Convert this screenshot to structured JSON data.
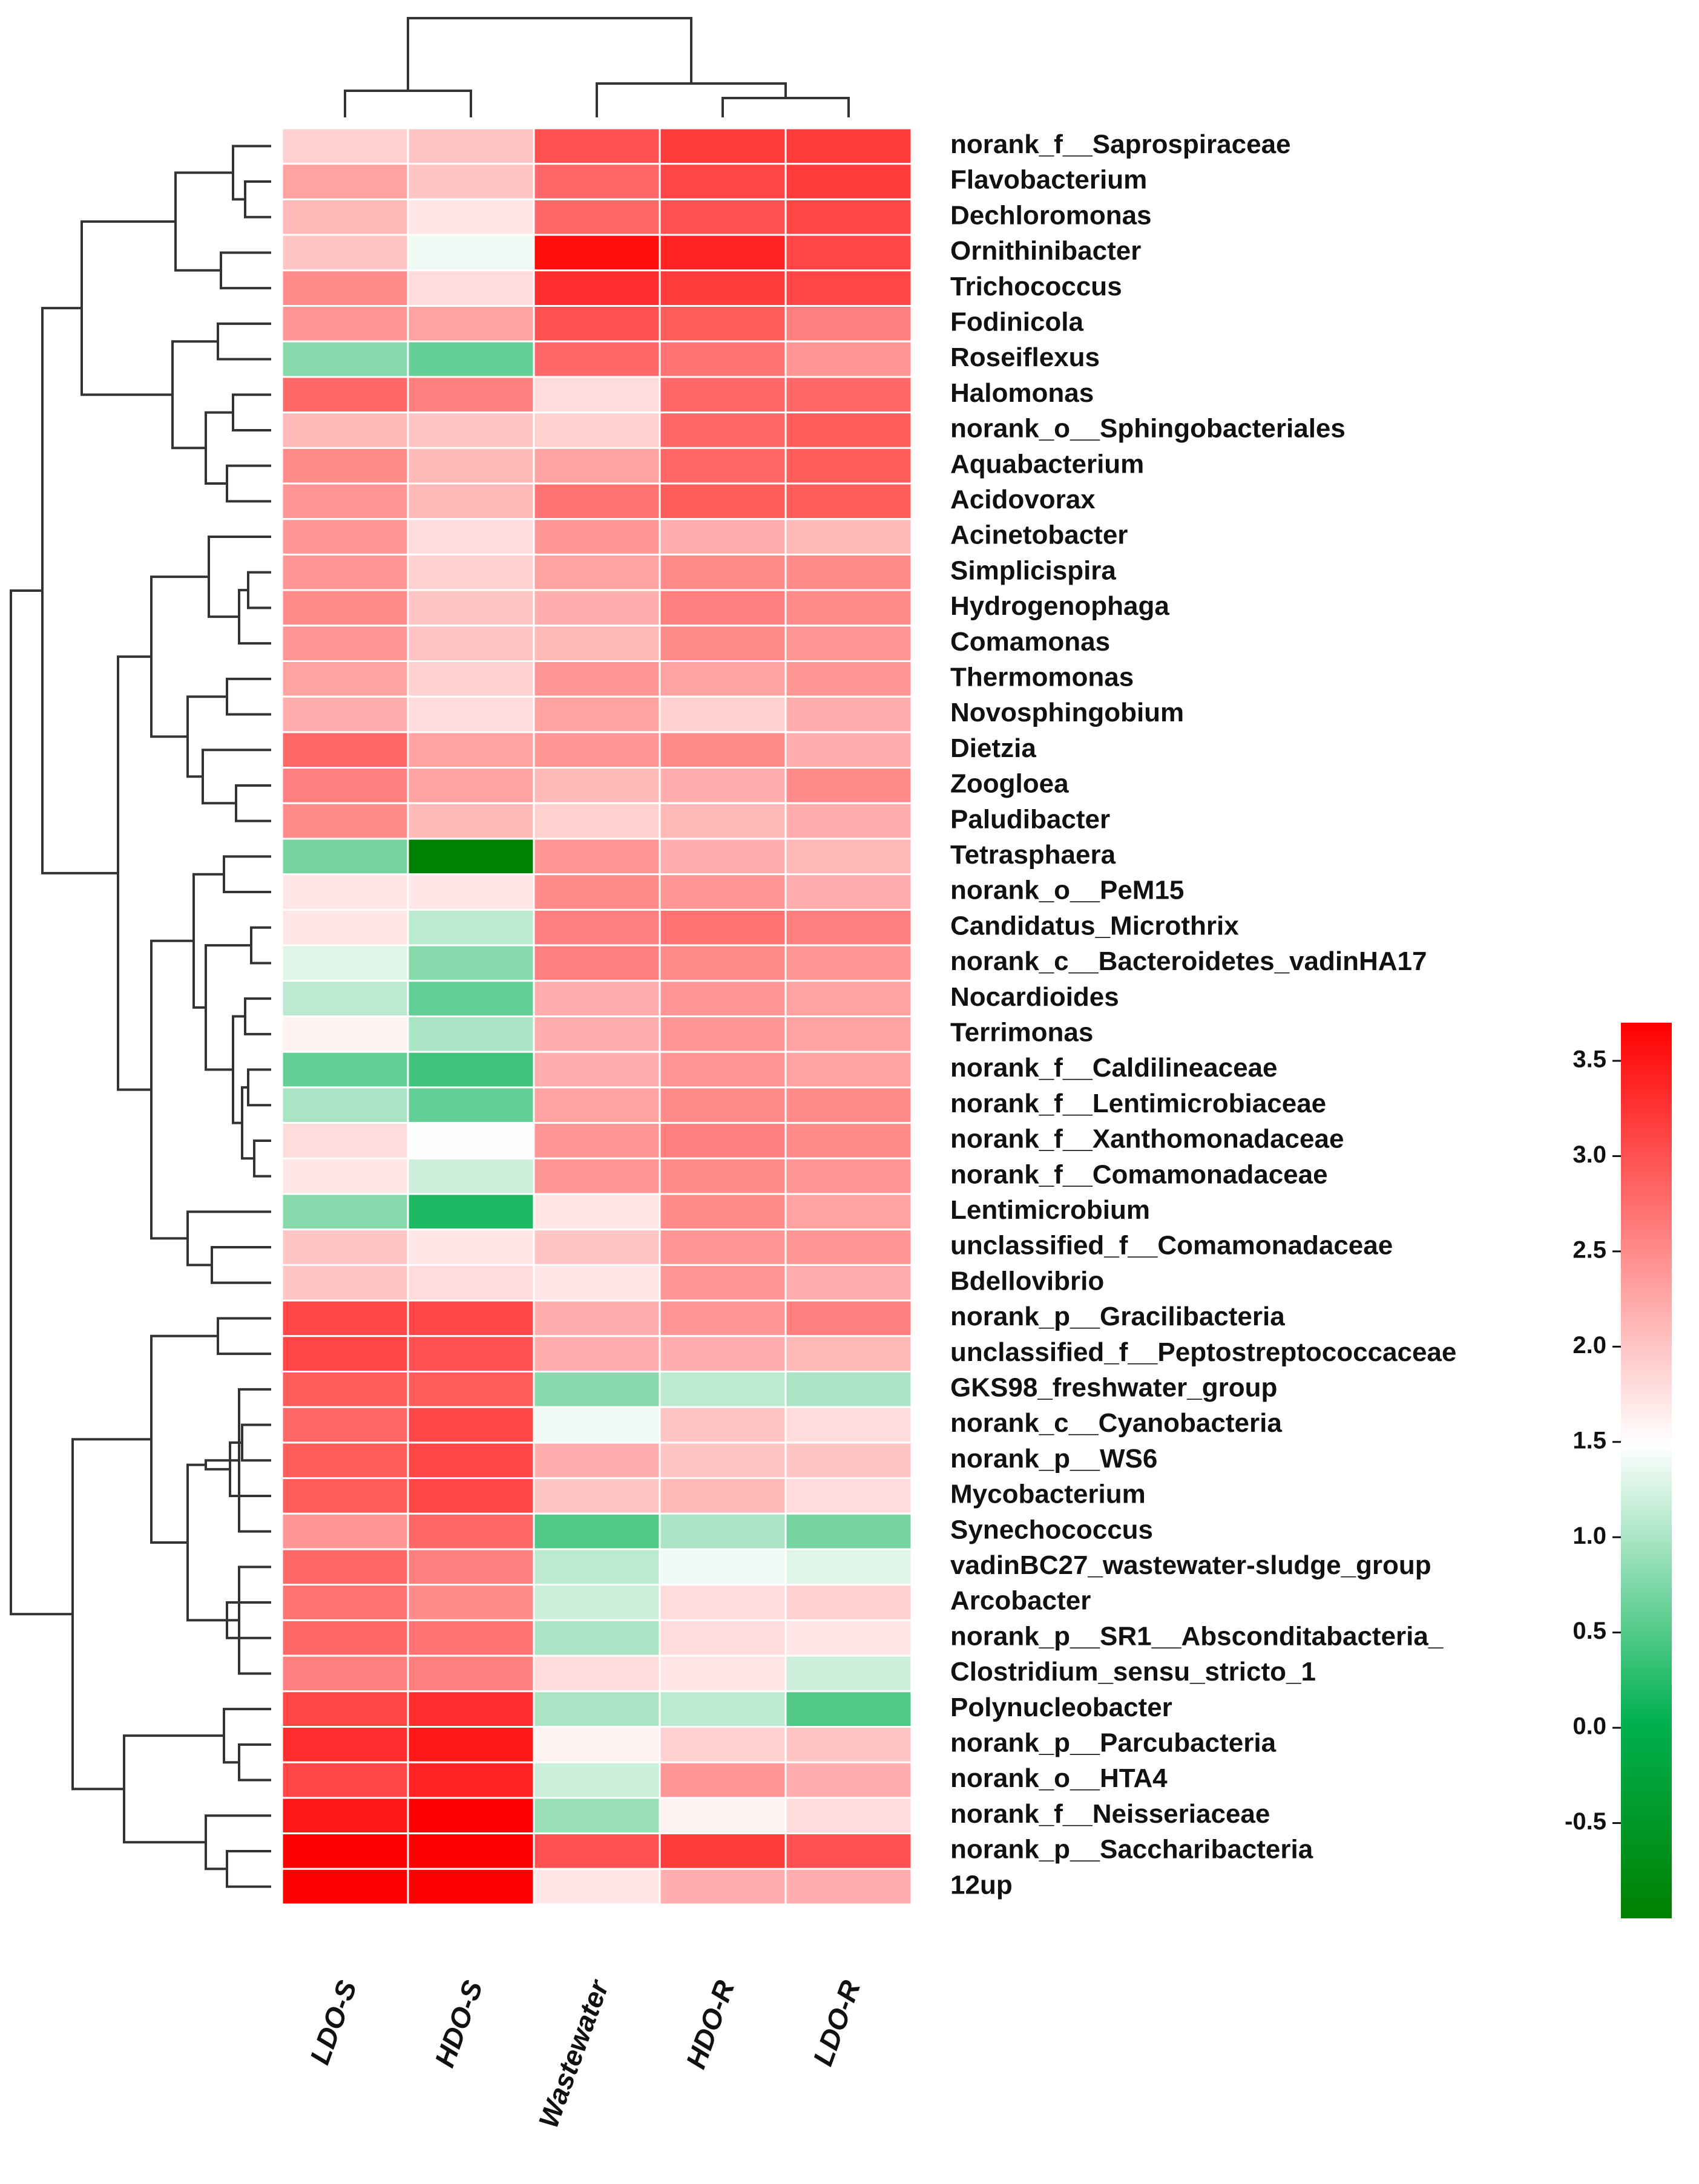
{
  "chart_data": {
    "type": "heatmap",
    "title": "",
    "columns": [
      "LDO-S",
      "HDO-S",
      "Wastewater",
      "HDO-R",
      "LDO-R"
    ],
    "rows": [
      {
        "label": "norank_f__Saprospiraceae",
        "values": [
          1.9,
          2.0,
          3.0,
          3.2,
          3.2
        ]
      },
      {
        "label": "Flavobacterium",
        "values": [
          2.3,
          2.0,
          2.8,
          3.1,
          3.2
        ]
      },
      {
        "label": "Dechloromonas",
        "values": [
          2.1,
          1.7,
          2.8,
          3.0,
          3.1
        ]
      },
      {
        "label": "Ornithinibacter",
        "values": [
          2.0,
          1.4,
          3.6,
          3.4,
          3.1
        ]
      },
      {
        "label": "Trichococcus",
        "values": [
          2.5,
          1.8,
          3.3,
          3.2,
          3.1
        ]
      },
      {
        "label": "Fodinicola",
        "values": [
          2.4,
          2.3,
          3.0,
          2.9,
          2.6
        ]
      },
      {
        "label": "Roseiflexus",
        "values": [
          0.8,
          0.6,
          2.8,
          2.7,
          2.4
        ]
      },
      {
        "label": "Halomonas",
        "values": [
          2.8,
          2.6,
          1.8,
          2.8,
          2.8
        ]
      },
      {
        "label": "norank_o__Sphingobacteriales",
        "values": [
          2.1,
          2.0,
          1.9,
          2.8,
          2.9
        ]
      },
      {
        "label": "Aquabacterium",
        "values": [
          2.5,
          2.1,
          2.3,
          2.8,
          2.9
        ]
      },
      {
        "label": "Acidovorax",
        "values": [
          2.4,
          2.1,
          2.7,
          2.9,
          2.9
        ]
      },
      {
        "label": "Acinetobacter",
        "values": [
          2.4,
          1.8,
          2.4,
          2.2,
          2.1
        ]
      },
      {
        "label": "Simplicispira",
        "values": [
          2.4,
          1.9,
          2.3,
          2.5,
          2.5
        ]
      },
      {
        "label": "Hydrogenophaga",
        "values": [
          2.5,
          2.0,
          2.2,
          2.6,
          2.5
        ]
      },
      {
        "label": "Comamonas",
        "values": [
          2.4,
          2.0,
          2.1,
          2.5,
          2.4
        ]
      },
      {
        "label": "Thermomonas",
        "values": [
          2.3,
          1.9,
          2.4,
          2.3,
          2.4
        ]
      },
      {
        "label": "Novosphingobium",
        "values": [
          2.2,
          1.8,
          2.3,
          1.9,
          2.2
        ]
      },
      {
        "label": "Dietzia",
        "values": [
          2.8,
          2.3,
          2.4,
          2.5,
          2.2
        ]
      },
      {
        "label": "Zoogloea",
        "values": [
          2.6,
          2.3,
          2.1,
          2.2,
          2.5
        ]
      },
      {
        "label": "Paludibacter",
        "values": [
          2.5,
          2.1,
          1.9,
          2.1,
          2.2
        ]
      },
      {
        "label": "Tetrasphaera",
        "values": [
          0.7,
          -1.0,
          2.4,
          2.2,
          2.1
        ]
      },
      {
        "label": "norank_o__PeM15",
        "values": [
          1.7,
          1.7,
          2.5,
          2.4,
          2.2
        ]
      },
      {
        "label": "Candidatus_Microthrix",
        "values": [
          1.7,
          1.1,
          2.6,
          2.7,
          2.6
        ]
      },
      {
        "label": "norank_c__Bacteroidetes_vadinHA17",
        "values": [
          1.3,
          0.8,
          2.6,
          2.5,
          2.4
        ]
      },
      {
        "label": "Nocardioides",
        "values": [
          1.1,
          0.6,
          2.2,
          2.4,
          2.3
        ]
      },
      {
        "label": "Terrimonas",
        "values": [
          1.6,
          1.0,
          2.2,
          2.4,
          2.3
        ]
      },
      {
        "label": "norank_f__Caldilineaceae",
        "values": [
          0.6,
          0.4,
          2.2,
          2.4,
          2.3
        ]
      },
      {
        "label": "norank_f__Lentimicrobiaceae",
        "values": [
          1.0,
          0.6,
          2.3,
          2.5,
          2.5
        ]
      },
      {
        "label": "norank_f__Xanthomonadaceae",
        "values": [
          1.8,
          1.5,
          2.4,
          2.6,
          2.5
        ]
      },
      {
        "label": "norank_f__Comamonadaceae",
        "values": [
          1.7,
          1.2,
          2.4,
          2.5,
          2.4
        ]
      },
      {
        "label": "Lentimicrobium",
        "values": [
          0.8,
          0.2,
          1.7,
          2.5,
          2.3
        ]
      },
      {
        "label": "unclassified_f__Comamonadaceae",
        "values": [
          2.0,
          1.7,
          2.0,
          2.4,
          2.4
        ]
      },
      {
        "label": "Bdellovibrio",
        "values": [
          2.0,
          1.8,
          1.7,
          2.4,
          2.2
        ]
      },
      {
        "label": "norank_p__Gracilibacteria",
        "values": [
          3.1,
          3.1,
          2.2,
          2.4,
          2.6
        ]
      },
      {
        "label": "unclassified_f__Peptostreptococcaceae",
        "values": [
          3.1,
          3.0,
          2.2,
          2.2,
          2.1
        ]
      },
      {
        "label": "GKS98_freshwater_group",
        "values": [
          2.9,
          2.9,
          0.8,
          1.1,
          1.0
        ]
      },
      {
        "label": "norank_c__Cyanobacteria",
        "values": [
          2.8,
          3.1,
          1.4,
          2.0,
          1.8
        ]
      },
      {
        "label": "norank_p__WS6",
        "values": [
          2.9,
          3.1,
          2.2,
          2.0,
          2.0
        ]
      },
      {
        "label": "Mycobacterium",
        "values": [
          2.9,
          3.1,
          2.0,
          2.1,
          1.8
        ]
      },
      {
        "label": "Synechococcus",
        "values": [
          2.4,
          2.8,
          0.5,
          1.0,
          0.7
        ]
      },
      {
        "label": "vadinBC27_wastewater-sludge_group",
        "values": [
          2.8,
          2.6,
          1.1,
          1.4,
          1.3
        ]
      },
      {
        "label": "Arcobacter",
        "values": [
          2.7,
          2.5,
          1.2,
          1.8,
          1.9
        ]
      },
      {
        "label": "norank_p__SR1__Absconditabacteria_",
        "values": [
          2.8,
          2.7,
          1.0,
          1.8,
          1.7
        ]
      },
      {
        "label": "Clostridium_sensu_stricto_1",
        "values": [
          2.6,
          2.6,
          1.8,
          1.7,
          1.2
        ]
      },
      {
        "label": "Polynucleobacter",
        "values": [
          3.1,
          3.3,
          1.0,
          1.1,
          0.5
        ]
      },
      {
        "label": "norank_p__Parcubacteria",
        "values": [
          3.3,
          3.5,
          1.6,
          1.9,
          2.0
        ]
      },
      {
        "label": "norank_o__HTA4",
        "values": [
          3.1,
          3.4,
          1.2,
          2.4,
          2.2
        ]
      },
      {
        "label": "norank_f__Neisseriaceae",
        "values": [
          3.5,
          3.7,
          0.9,
          1.6,
          1.8
        ]
      },
      {
        "label": "norank_p__Saccharibacteria",
        "values": [
          3.7,
          3.7,
          3.0,
          3.2,
          3.0
        ]
      },
      {
        "label": "12up",
        "values": [
          3.7,
          3.7,
          1.7,
          2.2,
          2.2
        ]
      }
    ],
    "colorbar": {
      "min": -1.0,
      "max": 3.7,
      "ticks": [
        -0.5,
        0.0,
        0.5,
        1.0,
        1.5,
        2.0,
        2.5,
        3.0,
        3.5
      ],
      "tick_labels": [
        "-0.5",
        "0.0",
        "0.5",
        "1.0",
        "1.5",
        "2.0",
        "2.5",
        "3.0",
        "3.5"
      ],
      "colors": {
        "low": "#008000",
        "mid_low": "#00b050",
        "mid": "#ffffff",
        "high": "#ff0000"
      }
    },
    "row_dendrogram": true,
    "column_dendrogram": true,
    "legend_position": "right"
  }
}
